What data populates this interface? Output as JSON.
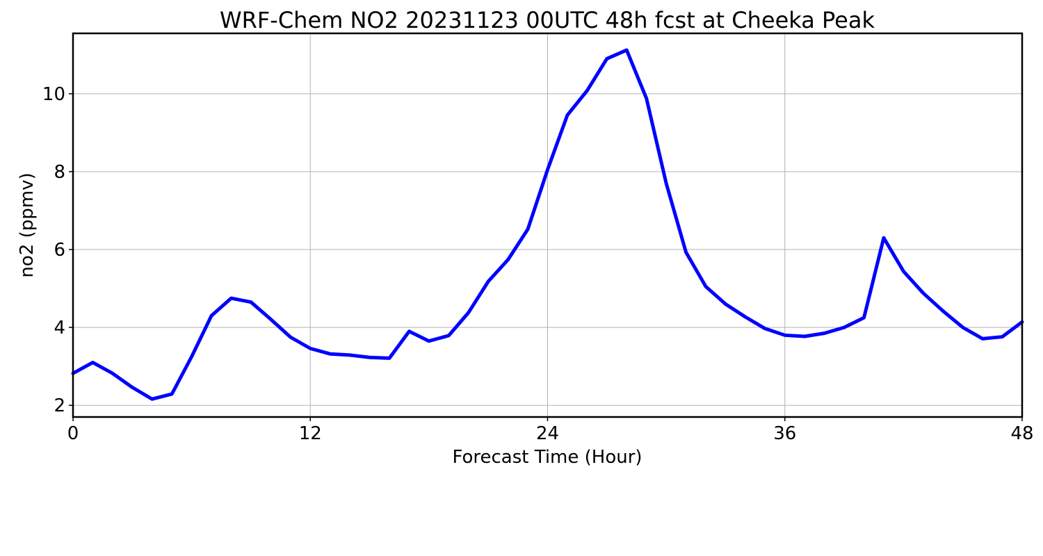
{
  "chart_data": {
    "type": "line",
    "title": "WRF-Chem NO2  20231123 00UTC 48h fcst at Cheeka Peak",
    "xlabel": "Forecast Time (Hour)",
    "ylabel": "no2  (ppmv)",
    "xlim": [
      0,
      48
    ],
    "ylim": [
      1.7,
      11.55
    ],
    "xticks": [
      0,
      12,
      24,
      36,
      48
    ],
    "yticks": [
      2,
      4,
      6,
      8,
      10
    ],
    "grid": true,
    "series_color": "#0000ff",
    "series": [
      {
        "x": [
          0,
          1,
          2,
          3,
          4,
          5,
          6,
          7,
          8,
          9,
          10,
          11,
          12,
          13,
          14,
          15,
          16,
          17,
          18,
          19,
          20,
          21,
          22,
          23,
          24,
          25,
          26,
          27,
          28,
          29,
          30,
          31,
          32,
          33,
          34,
          35,
          36,
          37,
          38,
          39,
          40,
          41,
          42,
          43,
          44,
          45,
          46,
          47,
          48
        ],
        "values": [
          2.82,
          3.1,
          2.82,
          2.46,
          2.16,
          2.29,
          3.25,
          4.3,
          4.75,
          4.65,
          4.21,
          3.75,
          3.46,
          3.32,
          3.29,
          3.23,
          3.21,
          3.9,
          3.65,
          3.79,
          4.38,
          5.18,
          5.74,
          6.52,
          8.05,
          9.45,
          10.08,
          10.9,
          11.12,
          9.88,
          7.7,
          5.93,
          5.05,
          4.6,
          4.27,
          3.97,
          3.8,
          3.77,
          3.85,
          4.0,
          4.25,
          6.3,
          5.44,
          4.88,
          4.42,
          4.0,
          3.71,
          3.76,
          4.14
        ]
      }
    ]
  }
}
